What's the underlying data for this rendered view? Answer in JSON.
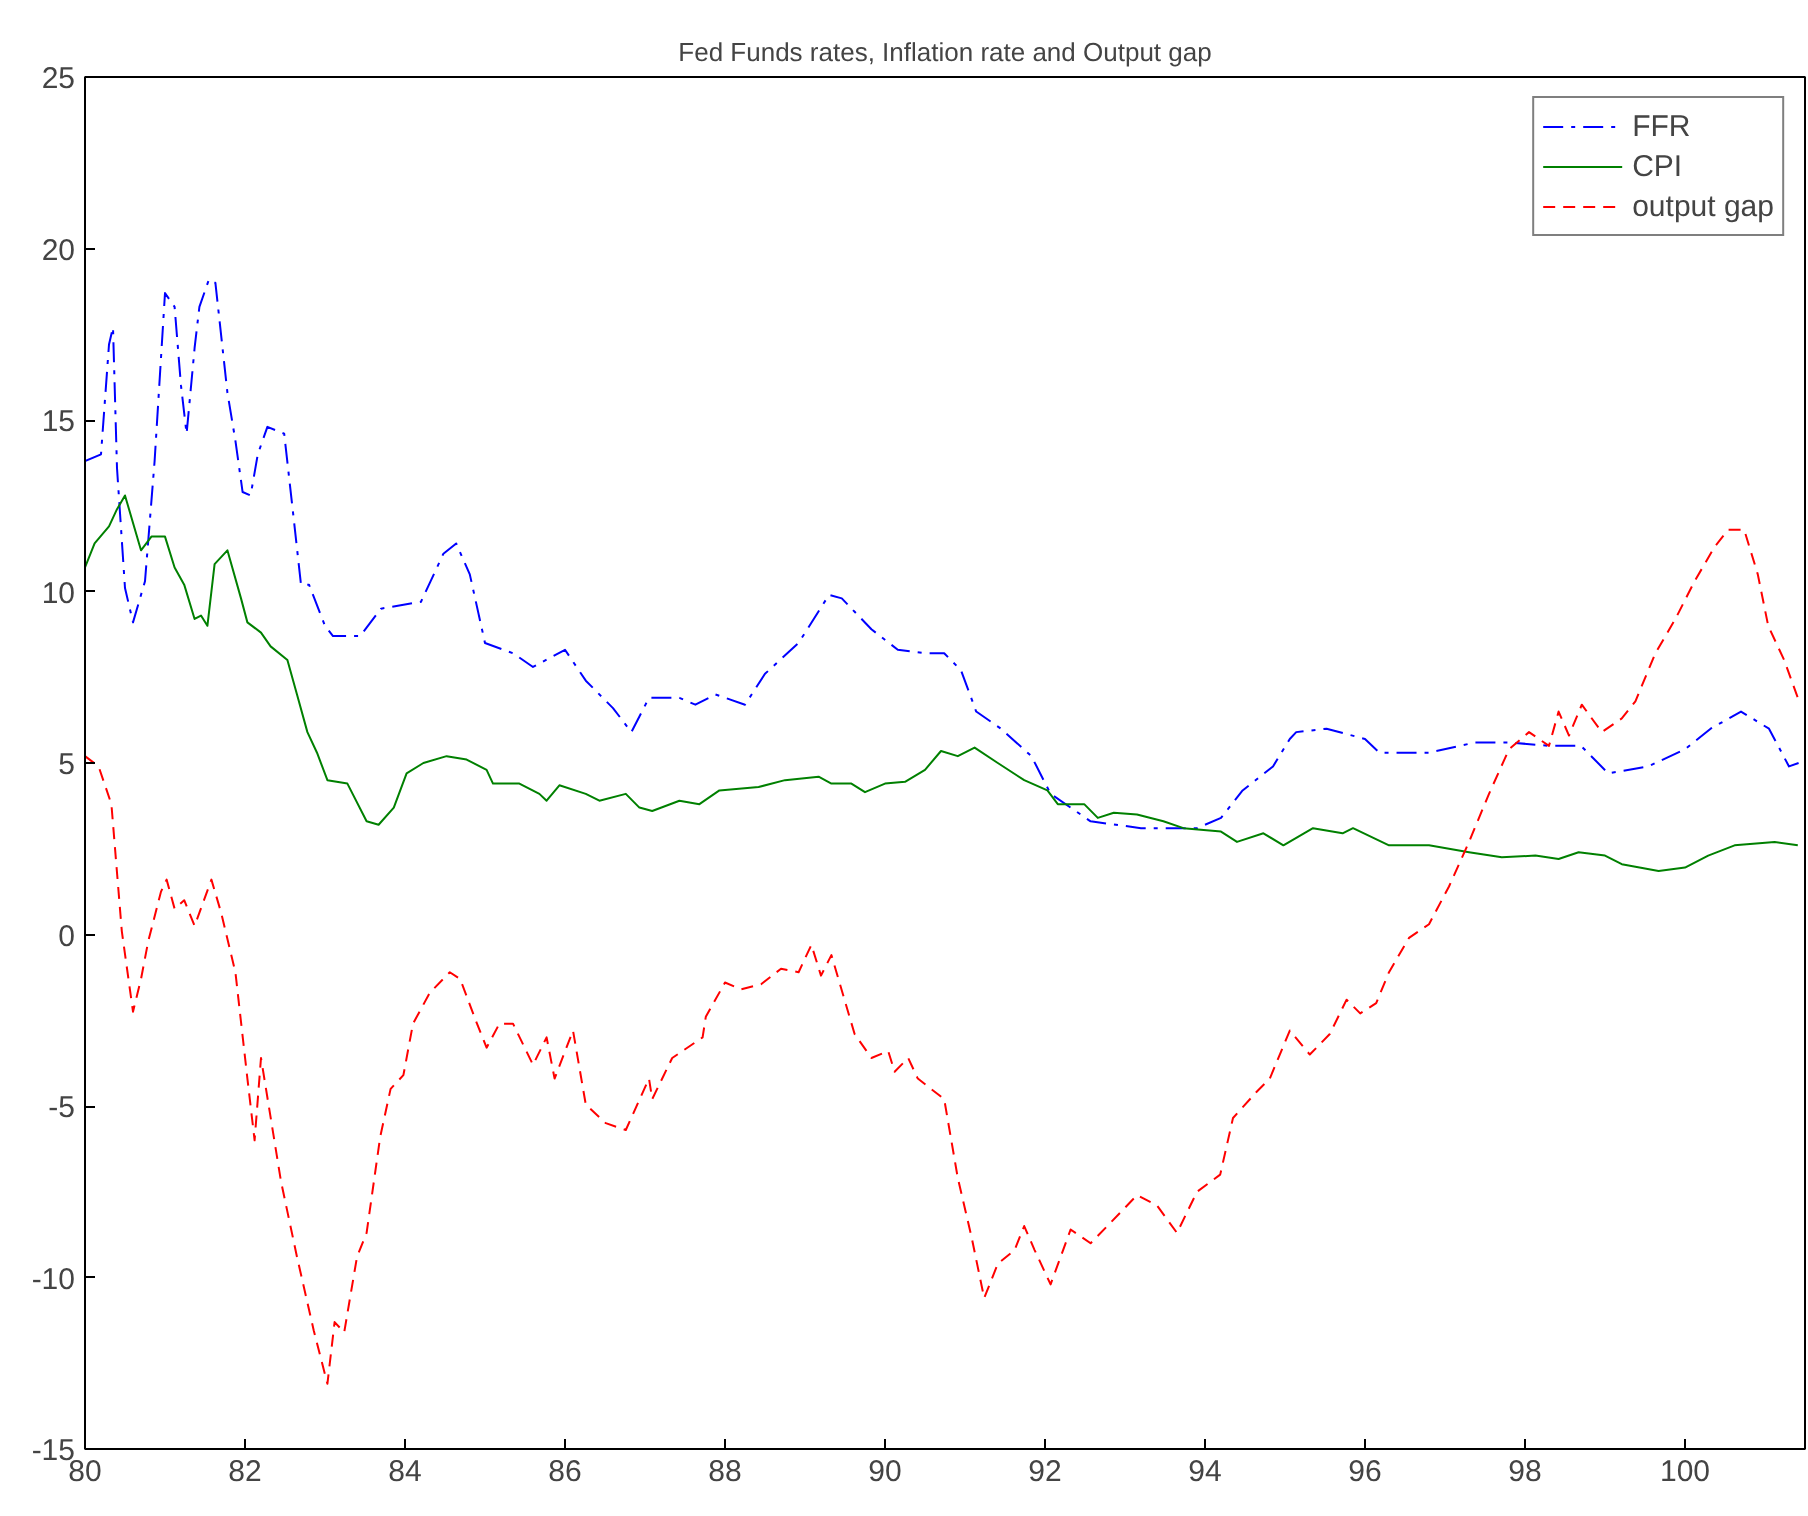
{
  "chart_data": {
    "type": "line",
    "title": "Fed Funds rates, Inflation rate and Output gap",
    "xlim": [
      80,
      101.5
    ],
    "xticks": [
      80,
      82,
      84,
      86,
      88,
      90,
      92,
      94,
      96,
      98,
      100
    ],
    "ylim": [
      -15,
      25
    ],
    "yticks": [
      -15,
      -10,
      -5,
      0,
      5,
      10,
      15,
      20,
      25
    ],
    "grid": false,
    "legend": "top right",
    "series": [
      {
        "name": "FFR",
        "color": "#0000ff",
        "line_style": "dashdot",
        "x": [
          80.0,
          80.2,
          80.3,
          80.35,
          80.4,
          80.5,
          80.6,
          80.75,
          80.87,
          81.0,
          81.12,
          81.2,
          81.27,
          81.37,
          81.43,
          81.55,
          81.63,
          81.78,
          81.88,
          81.97,
          82.07,
          82.16,
          82.28,
          82.49,
          82.61,
          82.7,
          82.8,
          83.0,
          83.1,
          83.44,
          83.7,
          84.2,
          84.48,
          84.64,
          84.81,
          85.0,
          85.35,
          85.6,
          86.0,
          86.26,
          86.6,
          86.83,
          87.05,
          87.43,
          87.63,
          87.88,
          88.25,
          88.5,
          88.92,
          89.3,
          89.46,
          89.83,
          90.16,
          90.5,
          90.74,
          90.95,
          91.14,
          91.45,
          91.83,
          92.07,
          92.57,
          93.2,
          93.9,
          94.2,
          94.47,
          94.85,
          95.06,
          95.14,
          95.52,
          96.0,
          96.18,
          96.8,
          97.38,
          97.8,
          98.3,
          98.7,
          99.04,
          99.54,
          100.0,
          100.32,
          100.7,
          101.05,
          101.3,
          101.42
        ],
        "values": [
          13.8,
          14.0,
          17.2,
          17.7,
          13.6,
          10.1,
          9.1,
          10.3,
          13.8,
          18.7,
          18.3,
          16.0,
          14.6,
          17.1,
          18.3,
          19.1,
          19.0,
          15.8,
          14.4,
          12.9,
          12.8,
          14.0,
          14.8,
          14.6,
          12.1,
          10.2,
          10.2,
          9.0,
          8.7,
          8.7,
          9.5,
          9.7,
          11.1,
          11.4,
          10.5,
          8.5,
          8.2,
          7.8,
          8.3,
          7.4,
          6.6,
          5.9,
          6.9,
          6.9,
          6.7,
          7.0,
          6.7,
          7.6,
          8.5,
          9.9,
          9.8,
          8.9,
          8.3,
          8.2,
          8.2,
          7.7,
          6.5,
          6.0,
          5.2,
          4.1,
          3.3,
          3.1,
          3.1,
          3.4,
          4.2,
          4.9,
          5.7,
          5.9,
          6.0,
          5.7,
          5.3,
          5.3,
          5.6,
          5.6,
          5.5,
          5.5,
          4.7,
          4.9,
          5.4,
          6.0,
          6.5,
          6.0,
          4.9,
          5.0
        ]
      },
      {
        "name": "CPI",
        "color": "#008000",
        "line_style": "solid",
        "x": [
          80.0,
          80.12,
          80.3,
          80.4,
          80.5,
          80.7,
          80.83,
          81.0,
          81.12,
          81.24,
          81.37,
          81.45,
          81.53,
          81.62,
          81.78,
          81.95,
          82.03,
          82.2,
          82.32,
          82.53,
          82.65,
          82.78,
          82.9,
          83.03,
          83.28,
          83.52,
          83.67,
          83.86,
          84.02,
          84.23,
          84.52,
          84.77,
          85.02,
          85.1,
          85.43,
          85.68,
          85.77,
          85.93,
          86.26,
          86.43,
          86.76,
          86.93,
          87.09,
          87.43,
          87.68,
          87.93,
          88.42,
          88.75,
          89.17,
          89.33,
          89.58,
          89.75,
          90.0,
          90.25,
          90.5,
          90.7,
          90.91,
          91.12,
          91.41,
          91.74,
          92.03,
          92.16,
          92.49,
          92.66,
          92.86,
          93.15,
          93.48,
          93.73,
          94.2,
          94.4,
          94.73,
          94.98,
          95.35,
          95.72,
          95.85,
          96.3,
          96.8,
          97.3,
          97.71,
          98.13,
          98.42,
          98.67,
          99.0,
          99.21,
          99.67,
          100.0,
          100.29,
          100.62,
          101.12,
          101.41
        ],
        "values": [
          10.7,
          11.4,
          11.9,
          12.4,
          12.8,
          11.2,
          11.6,
          11.6,
          10.7,
          10.2,
          9.2,
          9.3,
          9.0,
          10.8,
          11.2,
          9.8,
          9.1,
          8.8,
          8.4,
          8.0,
          7.0,
          5.9,
          5.3,
          4.5,
          4.4,
          3.3,
          3.2,
          3.7,
          4.7,
          5.0,
          5.2,
          5.1,
          4.8,
          4.4,
          4.4,
          4.1,
          3.9,
          4.35,
          4.1,
          3.9,
          4.1,
          3.7,
          3.6,
          3.9,
          3.8,
          4.2,
          4.3,
          4.5,
          4.6,
          4.4,
          4.4,
          4.15,
          4.4,
          4.45,
          4.8,
          5.35,
          5.2,
          5.45,
          5.0,
          4.5,
          4.2,
          3.8,
          3.8,
          3.4,
          3.55,
          3.5,
          3.3,
          3.1,
          3.0,
          2.7,
          2.95,
          2.6,
          3.1,
          2.95,
          3.1,
          2.6,
          2.6,
          2.4,
          2.25,
          2.3,
          2.2,
          2.4,
          2.3,
          2.05,
          1.85,
          1.95,
          2.3,
          2.6,
          2.7,
          2.6
        ]
      },
      {
        "name": "output gap",
        "color": "#ff0000",
        "line_style": "dashed",
        "x": [
          80.0,
          80.17,
          80.33,
          80.46,
          80.6,
          80.7,
          80.79,
          80.95,
          81.02,
          81.12,
          81.24,
          81.37,
          81.58,
          81.7,
          81.88,
          82.03,
          82.12,
          82.2,
          82.45,
          82.65,
          82.86,
          83.03,
          83.12,
          83.24,
          83.4,
          83.52,
          83.69,
          83.82,
          83.98,
          84.1,
          84.31,
          84.56,
          84.69,
          84.9,
          85.02,
          85.18,
          85.35,
          85.6,
          85.77,
          85.87,
          86.1,
          86.26,
          86.51,
          86.76,
          87.05,
          87.09,
          87.34,
          87.72,
          87.76,
          88.0,
          88.2,
          88.45,
          88.7,
          88.92,
          89.08,
          89.2,
          89.33,
          89.62,
          89.83,
          90.04,
          90.12,
          90.29,
          90.41,
          90.74,
          90.91,
          91.08,
          91.24,
          91.41,
          91.62,
          91.74,
          91.87,
          92.07,
          92.32,
          92.57,
          92.82,
          93.15,
          93.4,
          93.65,
          93.9,
          94.19,
          94.35,
          94.64,
          94.81,
          95.06,
          95.31,
          95.56,
          95.77,
          95.94,
          96.14,
          96.3,
          96.55,
          96.8,
          97.05,
          97.3,
          97.55,
          97.8,
          98.05,
          98.3,
          98.42,
          98.55,
          98.71,
          98.96,
          99.21,
          99.38,
          99.63,
          99.88,
          100.12,
          100.37,
          100.54,
          100.74,
          100.91,
          101.04,
          101.24,
          101.41
        ],
        "values": [
          5.2,
          4.9,
          3.8,
          0.1,
          -2.25,
          -1.3,
          -0.2,
          1.25,
          1.6,
          0.75,
          1.0,
          0.25,
          1.6,
          0.65,
          -1.1,
          -4.2,
          -6.0,
          -3.6,
          -7.2,
          -9.4,
          -11.55,
          -13.1,
          -11.3,
          -11.6,
          -9.4,
          -8.7,
          -5.9,
          -4.5,
          -4.1,
          -2.6,
          -1.7,
          -1.1,
          -1.3,
          -2.6,
          -3.3,
          -2.6,
          -2.6,
          -3.8,
          -3.0,
          -4.2,
          -2.8,
          -4.96,
          -5.5,
          -5.7,
          -4.2,
          -4.8,
          -3.6,
          -3.0,
          -2.4,
          -1.4,
          -1.6,
          -1.45,
          -1.0,
          -1.1,
          -0.3,
          -1.2,
          -0.6,
          -2.9,
          -3.6,
          -3.4,
          -4.0,
          -3.6,
          -4.2,
          -4.8,
          -7.1,
          -8.8,
          -10.6,
          -9.6,
          -9.2,
          -8.5,
          -9.2,
          -10.2,
          -8.6,
          -9.0,
          -8.4,
          -7.6,
          -7.9,
          -8.7,
          -7.5,
          -7.0,
          -5.35,
          -4.6,
          -4.2,
          -2.8,
          -3.5,
          -2.9,
          -1.9,
          -2.3,
          -2.0,
          -1.1,
          -0.1,
          0.3,
          1.4,
          2.7,
          4.1,
          5.4,
          5.9,
          5.5,
          6.5,
          5.8,
          6.7,
          5.9,
          6.3,
          6.8,
          8.2,
          9.2,
          10.3,
          11.3,
          11.8,
          11.8,
          10.5,
          9.0,
          8.0,
          6.9
        ]
      }
    ]
  }
}
